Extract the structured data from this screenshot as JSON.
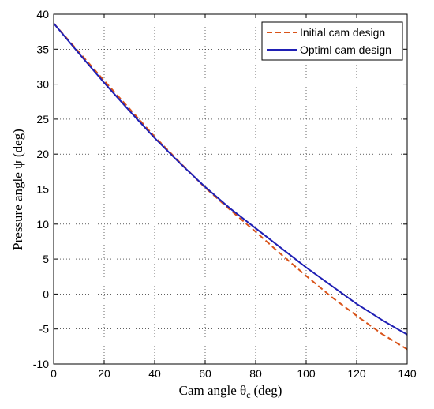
{
  "chart_data": {
    "type": "line",
    "xlabel": "Cam angle θ",
    "xlabel_sub": "c",
    "xlabel_unit": "(deg)",
    "ylabel": "Pressure angle ψ (deg)",
    "xlim": [
      0,
      140
    ],
    "ylim": [
      -10,
      40
    ],
    "xticks": [
      0,
      20,
      40,
      60,
      80,
      100,
      120,
      140
    ],
    "yticks": [
      -10,
      -5,
      0,
      5,
      10,
      15,
      20,
      25,
      30,
      35,
      40
    ],
    "grid": true,
    "legend_position": "top-right",
    "series": [
      {
        "name": "Initial cam design",
        "color": "#d95319",
        "style": "dashed",
        "x": [
          0,
          10,
          20,
          30,
          40,
          50,
          60,
          70,
          80,
          90,
          100,
          110,
          120,
          130,
          140
        ],
        "y": [
          38.7,
          34.6,
          30.5,
          26.5,
          22.5,
          18.8,
          15.2,
          12.0,
          8.9,
          5.7,
          2.6,
          -0.4,
          -3.1,
          -5.7,
          -7.9
        ]
      },
      {
        "name": "Optiml cam design",
        "color": "#1f1fb4",
        "style": "solid",
        "x": [
          0,
          10,
          20,
          30,
          40,
          50,
          60,
          70,
          80,
          90,
          100,
          110,
          120,
          130,
          140
        ],
        "y": [
          38.7,
          34.4,
          30.2,
          26.2,
          22.3,
          18.7,
          15.3,
          12.2,
          9.4,
          6.6,
          3.8,
          1.2,
          -1.4,
          -3.7,
          -5.8
        ]
      }
    ]
  }
}
